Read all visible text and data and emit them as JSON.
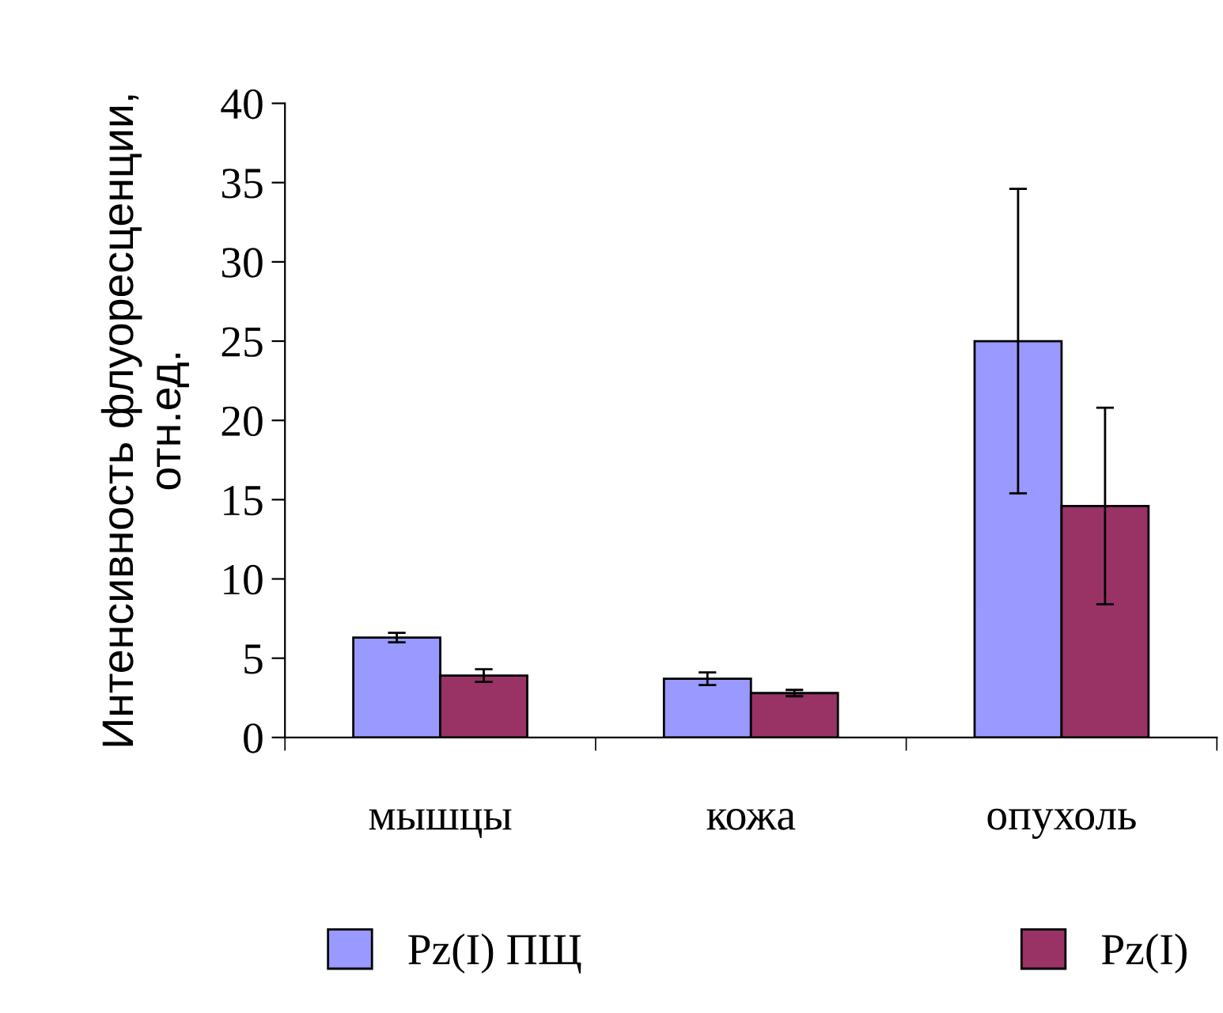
{
  "chart_data": {
    "type": "bar",
    "ylabel": "Интенсивность флуоресценции,\nотн.ед.",
    "categories": [
      "мышцы",
      "кожа",
      "опухоль"
    ],
    "series": [
      {
        "name": "Pz(I) ПЩ",
        "color": "#9999ff",
        "values": [
          6.3,
          3.7,
          25.0
        ],
        "errors": [
          0.3,
          0.4,
          9.6
        ]
      },
      {
        "name": "Pz(I)",
        "color": "#993366",
        "values": [
          3.9,
          2.8,
          14.6
        ],
        "errors": [
          0.4,
          0.2,
          6.2
        ]
      }
    ],
    "ylim": [
      0,
      40
    ],
    "yticks": [
      0,
      5,
      10,
      15,
      20,
      25,
      30,
      35,
      40
    ],
    "grid": false,
    "legend": "bottom"
  }
}
